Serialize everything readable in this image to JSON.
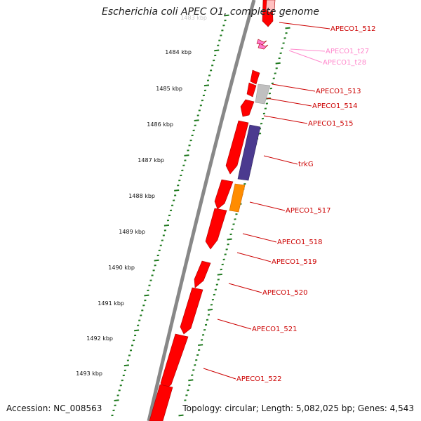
{
  "title": "Escherichia coli APEC O1, complete genome",
  "footer": {
    "accession": "Accession: NC_008563",
    "summary": "Topology: circular; Length: 5,082,025 bp; Genes: 4,543"
  },
  "colors": {
    "backbone": "#888888",
    "ticks": "#1f7a1f",
    "cds": "#ff0000",
    "trna": "#ff77cc",
    "pseudo": "#c0c0c0",
    "trkG": "#4b3a8f",
    "orange": "#ff8c00",
    "label": "#cc0000",
    "trna_label": "#ff88cc"
  },
  "tick_labels": [
    {
      "label": "1484 kbp"
    },
    {
      "label": "1485 kbp"
    },
    {
      "label": "1486 kbp"
    },
    {
      "label": "1487 kbp"
    },
    {
      "label": "1488 kbp"
    },
    {
      "label": "1489 kbp"
    },
    {
      "label": "1490 kbp"
    },
    {
      "label": "1491 kbp"
    },
    {
      "label": "1492 kbp"
    },
    {
      "label": "1493 kbp"
    }
  ],
  "gene_labels": [
    {
      "text": "APECO1_512",
      "kind": "cds"
    },
    {
      "text": "APECO1_t27",
      "kind": "trna"
    },
    {
      "text": "APECO1_t28",
      "kind": "trna"
    },
    {
      "text": "APECO1_513",
      "kind": "cds"
    },
    {
      "text": "APECO1_514",
      "kind": "cds"
    },
    {
      "text": "APECO1_515",
      "kind": "cds"
    },
    {
      "text": "trkG",
      "kind": "cds"
    },
    {
      "text": "APECO1_517",
      "kind": "cds"
    },
    {
      "text": "APECO1_518",
      "kind": "cds"
    },
    {
      "text": "APECO1_519",
      "kind": "cds"
    },
    {
      "text": "APECO1_520",
      "kind": "cds"
    },
    {
      "text": "APECO1_521",
      "kind": "cds"
    },
    {
      "text": "APECO1_522",
      "kind": "cds"
    }
  ]
}
